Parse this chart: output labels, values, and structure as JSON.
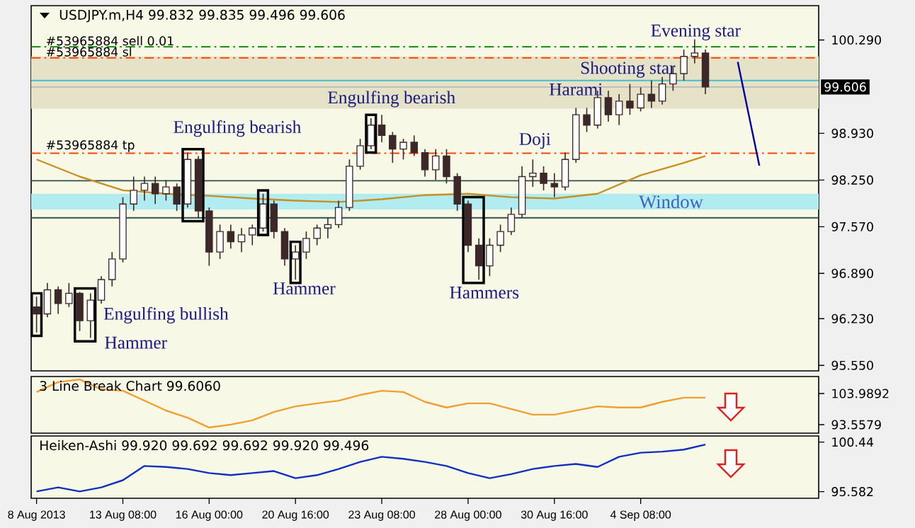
{
  "chart_data": [
    {
      "type": "candlestick",
      "title": "USDJPY.m,H4 99.832 99.835 99.496 99.606",
      "color": "#3c2828",
      "categories": [
        null,
        null,
        null,
        null,
        null,
        null,
        null,
        null,
        null,
        null,
        null,
        null,
        null,
        null,
        null,
        null,
        null,
        null,
        null,
        null,
        null,
        null,
        null,
        null,
        null,
        null,
        null,
        null,
        null,
        null,
        null,
        null,
        null,
        null,
        null,
        null,
        null,
        null,
        null,
        null,
        null,
        null,
        null,
        null,
        null,
        null,
        null,
        null,
        null,
        null,
        null,
        null,
        null,
        null,
        null,
        null,
        null,
        null,
        null,
        null,
        null,
        null,
        null,
        null,
        null,
        null,
        null,
        null,
        null,
        null,
        null,
        null,
        null
      ],
      "ohlc": [
        [
          96.4,
          96.55,
          96.03,
          96.3
        ],
        [
          96.3,
          96.75,
          96.25,
          96.65
        ],
        [
          96.65,
          96.7,
          96.3,
          96.45
        ],
        [
          96.45,
          96.75,
          96.4,
          96.6
        ],
        [
          96.6,
          96.62,
          96.05,
          96.2
        ],
        [
          96.2,
          96.6,
          95.95,
          96.5
        ],
        [
          96.5,
          96.85,
          96.45,
          96.8
        ],
        [
          96.8,
          97.2,
          96.7,
          97.1
        ],
        [
          97.1,
          98.0,
          97.05,
          97.9
        ],
        [
          97.9,
          98.3,
          97.8,
          98.1
        ],
        [
          98.1,
          98.3,
          97.95,
          98.2
        ],
        [
          98.2,
          98.3,
          97.9,
          98.05
        ],
        [
          98.05,
          98.25,
          97.95,
          98.15
        ],
        [
          98.15,
          98.2,
          97.8,
          97.9
        ],
        [
          97.9,
          98.65,
          97.85,
          98.55
        ],
        [
          98.55,
          98.6,
          97.7,
          97.8
        ],
        [
          97.8,
          97.85,
          97.0,
          97.2
        ],
        [
          97.2,
          97.6,
          97.1,
          97.5
        ],
        [
          97.5,
          97.6,
          97.25,
          97.35
        ],
        [
          97.35,
          97.55,
          97.2,
          97.45
        ],
        [
          97.45,
          97.6,
          97.3,
          97.55
        ],
        [
          97.55,
          98.05,
          97.5,
          97.9
        ],
        [
          97.9,
          97.95,
          97.4,
          97.5
        ],
        [
          97.5,
          97.55,
          97.0,
          97.1
        ],
        [
          97.1,
          97.3,
          96.8,
          97.2
        ],
        [
          97.2,
          97.5,
          97.1,
          97.4
        ],
        [
          97.4,
          97.6,
          97.3,
          97.55
        ],
        [
          97.55,
          97.7,
          97.4,
          97.6
        ],
        [
          97.6,
          97.95,
          97.55,
          97.85
        ],
        [
          97.85,
          98.55,
          97.8,
          98.45
        ],
        [
          98.45,
          98.85,
          98.4,
          98.75
        ],
        [
          98.75,
          99.15,
          98.7,
          99.05
        ],
        [
          99.05,
          99.2,
          98.8,
          98.9
        ],
        [
          98.9,
          98.95,
          98.5,
          98.7
        ],
        [
          98.7,
          98.85,
          98.55,
          98.8
        ],
        [
          98.8,
          98.9,
          98.6,
          98.65
        ],
        [
          98.65,
          98.7,
          98.3,
          98.4
        ],
        [
          98.4,
          98.7,
          98.25,
          98.6
        ],
        [
          98.6,
          98.7,
          98.2,
          98.3
        ],
        [
          98.3,
          98.35,
          97.8,
          97.9
        ],
        [
          97.9,
          97.95,
          97.2,
          97.3
        ],
        [
          97.3,
          97.4,
          96.8,
          97.0
        ],
        [
          97.0,
          97.4,
          96.85,
          97.3
        ],
        [
          97.3,
          97.6,
          97.2,
          97.5
        ],
        [
          97.5,
          97.85,
          97.45,
          97.75
        ],
        [
          97.75,
          98.45,
          97.7,
          98.3
        ],
        [
          98.3,
          98.55,
          98.15,
          98.35
        ],
        [
          98.35,
          98.45,
          98.1,
          98.2
        ],
        [
          98.2,
          98.35,
          98.0,
          98.15
        ],
        [
          98.15,
          98.65,
          98.1,
          98.55
        ],
        [
          98.55,
          99.3,
          98.5,
          99.2
        ],
        [
          99.2,
          99.3,
          98.95,
          99.05
        ],
        [
          99.05,
          99.55,
          99.0,
          99.45
        ],
        [
          99.45,
          99.55,
          99.1,
          99.2
        ],
        [
          99.2,
          99.5,
          99.05,
          99.4
        ],
        [
          99.4,
          99.65,
          99.2,
          99.3
        ],
        [
          99.3,
          99.6,
          99.25,
          99.5
        ],
        [
          99.5,
          99.7,
          99.3,
          99.4
        ],
        [
          99.4,
          99.75,
          99.35,
          99.65
        ],
        [
          99.65,
          99.9,
          99.55,
          99.8
        ],
        [
          99.8,
          100.15,
          99.7,
          100.05
        ],
        [
          100.05,
          100.3,
          99.95,
          100.1
        ],
        [
          100.1,
          100.15,
          99.5,
          99.606
        ],
        null,
        null,
        null,
        null,
        null,
        null,
        null,
        null,
        null,
        null
      ],
      "series": [
        {
          "type": "line",
          "color": "#c89020",
          "values": [
            98.55,
            null,
            null,
            null,
            98.3,
            null,
            null,
            null,
            98.1,
            null,
            null,
            null,
            98.05,
            null,
            null,
            null,
            98.02,
            null,
            null,
            null,
            97.98,
            null,
            null,
            null,
            97.95,
            null,
            null,
            null,
            97.93,
            null,
            null,
            null,
            97.97,
            null,
            null,
            null,
            98.03,
            null,
            null,
            null,
            98.05,
            null,
            null,
            null,
            98.0,
            null,
            null,
            null,
            97.98,
            null,
            null,
            null,
            98.05,
            null,
            null,
            null,
            98.32,
            null,
            null,
            null,
            98.5,
            null,
            98.6,
            null,
            null,
            null,
            null,
            null,
            null,
            null,
            null,
            null,
            null
          ]
        },
        {
          "type": "line",
          "color": "#0000a0",
          "values": [
            null,
            null,
            null,
            null,
            null,
            null,
            null,
            null,
            null,
            null,
            null,
            null,
            null,
            null,
            null,
            null,
            null,
            null,
            null,
            null,
            null,
            null,
            null,
            null,
            null,
            null,
            null,
            null,
            null,
            null,
            null,
            null,
            null,
            null,
            null,
            null,
            null,
            null,
            null,
            null,
            null,
            null,
            null,
            null,
            null,
            null,
            null,
            null,
            null,
            null,
            null,
            null,
            null,
            null,
            null,
            null,
            null,
            null,
            null,
            null,
            null,
            null,
            null,
            null,
            null,
            99.97,
            null,
            98.46,
            null,
            null,
            null,
            null,
            null
          ]
        }
      ],
      "ylim": [
        95.47,
        100.79
      ],
      "yticks": [
        {
          "value": 95.55,
          "label": "95.550"
        },
        {
          "value": 96.23,
          "label": "96.230"
        },
        {
          "value": 96.89,
          "label": "96.890"
        },
        {
          "value": 97.57,
          "label": "97.570"
        },
        {
          "value": 98.25,
          "label": "98.250"
        },
        {
          "value": 98.93,
          "label": "98.930"
        },
        {
          "value": 100.29,
          "label": "100.290"
        }
      ],
      "bands": [
        {
          "axis": "y",
          "from": 99.29,
          "to": 100.05,
          "color": "#e6e2c8"
        },
        {
          "axis": "y",
          "from": 97.82,
          "to": 98.05,
          "color": "#b0ecf0",
          "label": "Window"
        }
      ],
      "ref_lines": [
        {
          "axis": "y",
          "value": 100.19,
          "label": "#53965884 sell 0.01",
          "color": "#008000",
          "line_style": "dashed"
        },
        {
          "axis": "y",
          "value": 100.03,
          "label": "#53965884 sl",
          "color": "#ff4500",
          "line_style": "dashed"
        },
        {
          "axis": "y",
          "value": 98.64,
          "label": "#53965884 tp",
          "color": "#ff4500",
          "line_style": "dashed"
        },
        {
          "axis": "y",
          "value": 99.606,
          "label": "99.606",
          "color": "#b8b8b8",
          "line_style": "solid"
        },
        {
          "axis": "y",
          "value": 99.7,
          "color": "#40c0d0",
          "line_style": "solid"
        },
        {
          "axis": "y",
          "value": 98.24,
          "color": "#305050",
          "line_style": "solid"
        },
        {
          "axis": "y",
          "value": 97.7,
          "color": "#305050",
          "line_style": "solid"
        }
      ],
      "annotations": [
        "Engulfing bullish",
        "Hammer",
        "Engulfing bearish",
        "Hammer",
        "Engulfing bearish",
        "Hammers",
        "Doji",
        "Harami",
        "Shooting star",
        "Evening star"
      ],
      "tick_labels": "y"
    },
    {
      "type": "line",
      "title": "3 Line Break Chart 99.6060",
      "categories": [
        null,
        null,
        null,
        null,
        null,
        null,
        null,
        null,
        null,
        null,
        null,
        null,
        null,
        null,
        null,
        null,
        null,
        null,
        null,
        null,
        null,
        null,
        null,
        null,
        null,
        null,
        null,
        null,
        null,
        null,
        null,
        null,
        null,
        null,
        null,
        null,
        null,
        null,
        null,
        null,
        null,
        null,
        null,
        null,
        null,
        null,
        null,
        null,
        null,
        null,
        null,
        null,
        null,
        null,
        null,
        null,
        null,
        null,
        null,
        null,
        null,
        null,
        null,
        null,
        null,
        null,
        null,
        null,
        null,
        null,
        null,
        null,
        null
      ],
      "series": [
        {
          "color": "#f0a030",
          "values": [
            104.5,
            null,
            107.8,
            null,
            108.7,
            null,
            105.4,
            null,
            104.9,
            null,
            101.6,
            null,
            98.3,
            null,
            95.9,
            null,
            92.6,
            null,
            93.6,
            null,
            95.0,
            null,
            97.8,
            null,
            99.7,
            null,
            100.7,
            null,
            101.6,
            null,
            103.5,
            null,
            104.9,
            null,
            104.5,
            null,
            101.2,
            null,
            99.3,
            null,
            100.7,
            null,
            100.7,
            null,
            98.8,
            null,
            96.9,
            null,
            96.9,
            null,
            98.3,
            null,
            99.7,
            null,
            99.3,
            null,
            99.3,
            null,
            101.2,
            null,
            102.6,
            null,
            102.6,
            null,
            null,
            null,
            null,
            null,
            null,
            null,
            null,
            null,
            null
          ]
        }
      ],
      "ylim": [
        90.72,
        109.68
      ],
      "yticks": [
        93.5579,
        103.9892
      ],
      "tick_labels": "y"
    },
    {
      "type": "line",
      "title": "Heiken-Ashi 99.920 99.692 99.692 99.920 99.496",
      "categories": [
        "8 Aug 2013",
        null,
        null,
        null,
        null,
        null,
        null,
        null,
        "13 Aug 08:00",
        null,
        null,
        null,
        null,
        null,
        null,
        null,
        "16 Aug 00:00",
        null,
        null,
        null,
        null,
        null,
        null,
        null,
        "20 Aug 16:00",
        null,
        null,
        null,
        null,
        null,
        null,
        null,
        "23 Aug 08:00",
        null,
        null,
        null,
        null,
        null,
        null,
        null,
        "28 Aug 00:00",
        null,
        null,
        null,
        null,
        null,
        null,
        null,
        "30 Aug 16:00",
        null,
        null,
        null,
        null,
        null,
        null,
        null,
        "4 Sep 08:00",
        null,
        null,
        null,
        null,
        null,
        null,
        null,
        null,
        null,
        null,
        null,
        null,
        null,
        null,
        null,
        null
      ],
      "series": [
        {
          "color": "#1030c0",
          "values": [
            95.6,
            null,
            96.0,
            null,
            95.6,
            null,
            96.0,
            null,
            96.7,
            null,
            98.1,
            null,
            98.0,
            null,
            97.8,
            null,
            97.4,
            null,
            97.2,
            null,
            97.4,
            null,
            97.6,
            null,
            96.9,
            null,
            97.2,
            null,
            97.8,
            null,
            98.5,
            null,
            99.0,
            null,
            98.8,
            null,
            98.5,
            null,
            98.1,
            null,
            97.4,
            null,
            96.9,
            null,
            97.3,
            null,
            97.8,
            null,
            98.1,
            null,
            98.3,
            null,
            98.0,
            null,
            99.0,
            null,
            99.4,
            null,
            99.5,
            null,
            99.7,
            null,
            100.2,
            null,
            null,
            null,
            null,
            null,
            null,
            null,
            null,
            null,
            null
          ]
        }
      ],
      "ylim": [
        94.93,
        101.04
      ],
      "yticks": [
        95.582,
        100.44
      ]
    }
  ]
}
